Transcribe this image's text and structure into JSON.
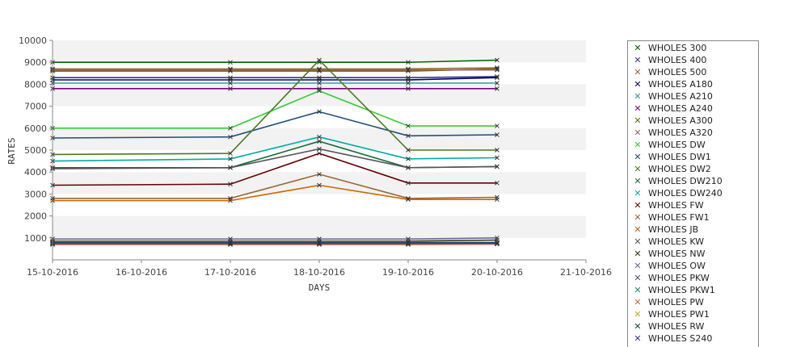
{
  "chart_data": {
    "type": "line",
    "xlabel": "DAYS",
    "ylabel": "RATES",
    "ylim": [
      0,
      10000
    ],
    "yticks": [
      1000,
      2000,
      3000,
      4000,
      5000,
      6000,
      7000,
      8000,
      9000,
      10000
    ],
    "x_ticks": [
      "15-10-2016",
      "16-10-2016",
      "17-10-2016",
      "18-10-2016",
      "19-10-2016",
      "20-10-2016",
      "21-10-2016"
    ],
    "x": [
      "15-10-2016",
      "17-10-2016",
      "18-10-2016",
      "19-10-2016",
      "20-10-2016"
    ],
    "grid": "alternating horizontal bands",
    "legend_position": "right",
    "series": [
      {
        "name": "WHOLES 300",
        "color": "#006400",
        "values": [
          9000,
          9000,
          9000,
          9000,
          9100
        ]
      },
      {
        "name": "WHOLES 400",
        "color": "#333399",
        "values": [
          8300,
          8300,
          8300,
          8300,
          8350
        ]
      },
      {
        "name": "WHOLES 500",
        "color": "#996633",
        "values": [
          8700,
          8700,
          8700,
          8700,
          8750
        ]
      },
      {
        "name": "WHOLES A180",
        "color": "#000066",
        "values": [
          8200,
          8200,
          8200,
          8200,
          8300
        ]
      },
      {
        "name": "WHOLES A210",
        "color": "#339999",
        "values": [
          8050,
          8050,
          8050,
          8050,
          8050
        ]
      },
      {
        "name": "WHOLES A240",
        "color": "#800080",
        "values": [
          7800,
          7800,
          7800,
          7800,
          7800
        ]
      },
      {
        "name": "WHOLES A300",
        "color": "#666600",
        "values": [
          8600,
          8600,
          8600,
          8600,
          8700
        ]
      },
      {
        "name": "WHOLES A320",
        "color": "#996666",
        "values": [
          8650,
          8650,
          8650,
          8650,
          8650
        ]
      },
      {
        "name": "WHOLES DW",
        "color": "#33cc33",
        "values": [
          6000,
          6000,
          7700,
          6100,
          6100
        ]
      },
      {
        "name": "WHOLES DW1",
        "color": "#1f4e79",
        "values": [
          5550,
          5600,
          6750,
          5650,
          5700
        ]
      },
      {
        "name": "WHOLES DW2",
        "color": "#4a7a1f",
        "values": [
          4800,
          4850,
          9100,
          5000,
          5000
        ]
      },
      {
        "name": "WHOLES DW210",
        "color": "#1a6b3a",
        "values": [
          4200,
          4200,
          5400,
          4200,
          4250
        ]
      },
      {
        "name": "WHOLES DW240",
        "color": "#00aaaa",
        "values": [
          4500,
          4600,
          5600,
          4600,
          4650
        ]
      },
      {
        "name": "WHOLES FW",
        "color": "#660000",
        "values": [
          3400,
          3450,
          4850,
          3500,
          3500
        ]
      },
      {
        "name": "WHOLES FW1",
        "color": "#996633",
        "values": [
          2800,
          2800,
          3900,
          2800,
          2850
        ]
      },
      {
        "name": "WHOLES JB",
        "color": "#cc6600",
        "values": [
          2700,
          2700,
          3400,
          2750,
          2750
        ]
      },
      {
        "name": "WHOLES KW",
        "color": "#555555",
        "values": [
          4150,
          4200,
          5050,
          4200,
          4250
        ]
      },
      {
        "name": "WHOLES NW",
        "color": "#333300",
        "values": [
          850,
          850,
          850,
          850,
          900
        ]
      },
      {
        "name": "WHOLES OW",
        "color": "#666699",
        "values": [
          950,
          950,
          950,
          950,
          1000
        ]
      },
      {
        "name": "WHOLES PKW",
        "color": "#555577",
        "values": [
          700,
          700,
          700,
          700,
          720
        ]
      },
      {
        "name": "WHOLES PKW1",
        "color": "#009966",
        "values": [
          750,
          750,
          750,
          750,
          760
        ]
      },
      {
        "name": "WHOLES PW",
        "color": "#cc6633",
        "values": [
          720,
          720,
          720,
          720,
          730
        ]
      },
      {
        "name": "WHOLES PW1",
        "color": "#ccaa00",
        "values": [
          800,
          800,
          800,
          800,
          800
        ]
      },
      {
        "name": "WHOLES RW",
        "color": "#004d4d",
        "values": [
          780,
          780,
          780,
          780,
          780
        ]
      },
      {
        "name": "WHOLES S240",
        "color": "#333399",
        "values": [
          760,
          760,
          760,
          760,
          760
        ]
      }
    ]
  }
}
